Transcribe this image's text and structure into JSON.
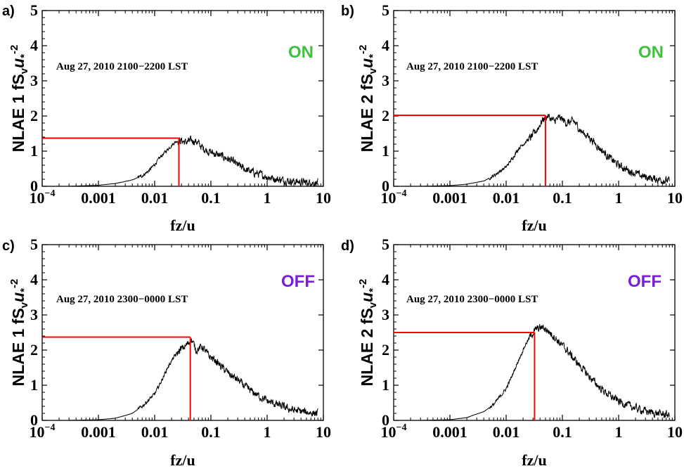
{
  "colors": {
    "on": "#3dc23d",
    "off": "#7a1fd6",
    "marker": "#ff0000",
    "spectrum": "#000000"
  },
  "chart_data": [
    {
      "type": "line",
      "panel": "a)",
      "ylabel": {
        "prefix": "NLAE 1 fS",
        "sub": "v",
        "star": "u",
        "starsub": "*",
        "exp": "-2"
      },
      "xlabel": "fz/u",
      "xscale": "log",
      "xlim": [
        0.0001,
        10
      ],
      "ylim": [
        0,
        5
      ],
      "xticks": [
        {
          "v": 0.0001,
          "base": "10",
          "exp": "−4"
        },
        {
          "v": 0.001,
          "label": "0.001"
        },
        {
          "v": 0.01,
          "label": "0.01"
        },
        {
          "v": 0.1,
          "label": "0.1"
        },
        {
          "v": 1,
          "label": "1"
        },
        {
          "v": 10,
          "label": "10"
        }
      ],
      "yticks": [
        0,
        1,
        2,
        3,
        4,
        5
      ],
      "annotation": "Aug 27, 2010 2100−2200 LST",
      "state": "ON",
      "state_color": "on",
      "peak_marker": {
        "x": 0.027,
        "y": 1.37
      },
      "series": [
        {
          "x": [
            0.0003,
            0.001,
            0.002,
            0.004,
            0.006,
            0.008,
            0.01,
            0.013,
            0.017,
            0.021,
            0.025,
            0.03,
            0.035,
            0.045,
            0.055,
            0.07,
            0.09,
            0.12,
            0.16,
            0.22,
            0.3,
            0.45,
            0.7,
            1,
            1.5,
            2.5,
            4,
            6,
            8
          ],
          "y": [
            0,
            0.03,
            0.08,
            0.18,
            0.3,
            0.45,
            0.62,
            0.85,
            1.05,
            1.2,
            1.3,
            1.3,
            1.25,
            1.3,
            1.28,
            1.1,
            1.0,
            0.92,
            0.85,
            0.75,
            0.6,
            0.45,
            0.35,
            0.27,
            0.2,
            0.15,
            0.12,
            0.1,
            0.1
          ]
        }
      ]
    },
    {
      "type": "line",
      "panel": "b)",
      "ylabel": {
        "prefix": "NLAE 2 fS",
        "sub": "v",
        "star": "u",
        "starsub": "*",
        "exp": "-2"
      },
      "xlabel": "fz/u",
      "xscale": "log",
      "xlim": [
        0.0001,
        10
      ],
      "ylim": [
        0,
        5
      ],
      "xticks": [
        {
          "v": 0.0001,
          "base": "10",
          "exp": "−4"
        },
        {
          "v": 0.001,
          "label": "0.001"
        },
        {
          "v": 0.01,
          "label": "0.01"
        },
        {
          "v": 0.1,
          "label": "0.1"
        },
        {
          "v": 1,
          "label": "1"
        },
        {
          "v": 10,
          "label": "10"
        }
      ],
      "yticks": [
        0,
        1,
        2,
        3,
        4,
        5
      ],
      "annotation": "Aug 27, 2010 2100−2200 LST",
      "state": "ON",
      "state_color": "on",
      "peak_marker": {
        "x": 0.05,
        "y": 2.02
      },
      "series": [
        {
          "x": [
            0.0003,
            0.001,
            0.002,
            0.004,
            0.006,
            0.01,
            0.013,
            0.017,
            0.022,
            0.028,
            0.035,
            0.045,
            0.055,
            0.07,
            0.09,
            0.12,
            0.16,
            0.22,
            0.3,
            0.45,
            0.7,
            1,
            1.5,
            2.5,
            4,
            6,
            8
          ],
          "y": [
            0,
            0.02,
            0.06,
            0.15,
            0.3,
            0.55,
            0.8,
            1.1,
            1.25,
            1.4,
            1.6,
            1.9,
            2.0,
            1.85,
            1.95,
            1.8,
            1.85,
            1.55,
            1.4,
            1.1,
            0.8,
            0.6,
            0.45,
            0.3,
            0.22,
            0.18,
            0.15
          ]
        }
      ]
    },
    {
      "type": "line",
      "panel": "c)",
      "ylabel": {
        "prefix": "NLAE 1 fS",
        "sub": "v",
        "star": "u",
        "starsub": "*",
        "exp": "-2"
      },
      "xlabel": "fz/u",
      "xscale": "log",
      "xlim": [
        0.0001,
        10
      ],
      "ylim": [
        0,
        5
      ],
      "xticks": [
        {
          "v": 0.0001,
          "base": "10",
          "exp": "−4"
        },
        {
          "v": 0.001,
          "label": "0.001"
        },
        {
          "v": 0.01,
          "label": "0.01"
        },
        {
          "v": 0.1,
          "label": "0.1"
        },
        {
          "v": 1,
          "label": "1"
        },
        {
          "v": 10,
          "label": "10"
        }
      ],
      "yticks": [
        0,
        1,
        2,
        3,
        4,
        5
      ],
      "annotation": "Aug 27, 2010 2300−0000 LST",
      "state": "OFF",
      "state_color": "off",
      "peak_marker": {
        "x": 0.043,
        "y": 2.37
      },
      "series": [
        {
          "x": [
            0.0003,
            0.001,
            0.002,
            0.004,
            0.006,
            0.01,
            0.013,
            0.017,
            0.022,
            0.028,
            0.035,
            0.045,
            0.055,
            0.07,
            0.09,
            0.12,
            0.16,
            0.22,
            0.3,
            0.45,
            0.7,
            1,
            1.5,
            2.5,
            4,
            6,
            8
          ],
          "y": [
            0,
            0.02,
            0.06,
            0.2,
            0.4,
            0.75,
            1.1,
            1.5,
            1.8,
            2.0,
            2.1,
            2.3,
            2.0,
            2.1,
            1.85,
            1.7,
            1.5,
            1.3,
            1.15,
            0.9,
            0.7,
            0.55,
            0.45,
            0.32,
            0.25,
            0.22,
            0.2
          ]
        }
      ]
    },
    {
      "type": "line",
      "panel": "d)",
      "ylabel": {
        "prefix": "NLAE 2 fS",
        "sub": "v",
        "star": "u",
        "starsub": "*",
        "exp": "-2"
      },
      "xlabel": "fz/u",
      "xscale": "log",
      "xlim": [
        0.0001,
        10
      ],
      "ylim": [
        0,
        5
      ],
      "xticks": [
        {
          "v": 0.0001,
          "base": "10",
          "exp": "−4"
        },
        {
          "v": 0.001,
          "label": "0.001"
        },
        {
          "v": 0.01,
          "label": "0.01"
        },
        {
          "v": 0.1,
          "label": "0.1"
        },
        {
          "v": 1,
          "label": "1"
        },
        {
          "v": 10,
          "label": "10"
        }
      ],
      "yticks": [
        0,
        1,
        2,
        3,
        4,
        5
      ],
      "annotation": "Aug 27, 2010 2300−0000 LST",
      "state": "OFF",
      "state_color": "off",
      "peak_marker": {
        "x": 0.032,
        "y": 2.5
      },
      "series": [
        {
          "x": [
            0.0003,
            0.001,
            0.002,
            0.004,
            0.006,
            0.01,
            0.013,
            0.017,
            0.022,
            0.028,
            0.035,
            0.045,
            0.055,
            0.07,
            0.09,
            0.12,
            0.16,
            0.22,
            0.3,
            0.45,
            0.7,
            1,
            1.5,
            2.5,
            4,
            6,
            8
          ],
          "y": [
            0,
            0.02,
            0.08,
            0.25,
            0.45,
            0.9,
            1.3,
            1.75,
            2.15,
            2.45,
            2.6,
            2.65,
            2.55,
            2.4,
            2.2,
            2.0,
            1.75,
            1.5,
            1.25,
            0.95,
            0.7,
            0.55,
            0.42,
            0.3,
            0.22,
            0.18,
            0.15
          ]
        }
      ]
    }
  ]
}
